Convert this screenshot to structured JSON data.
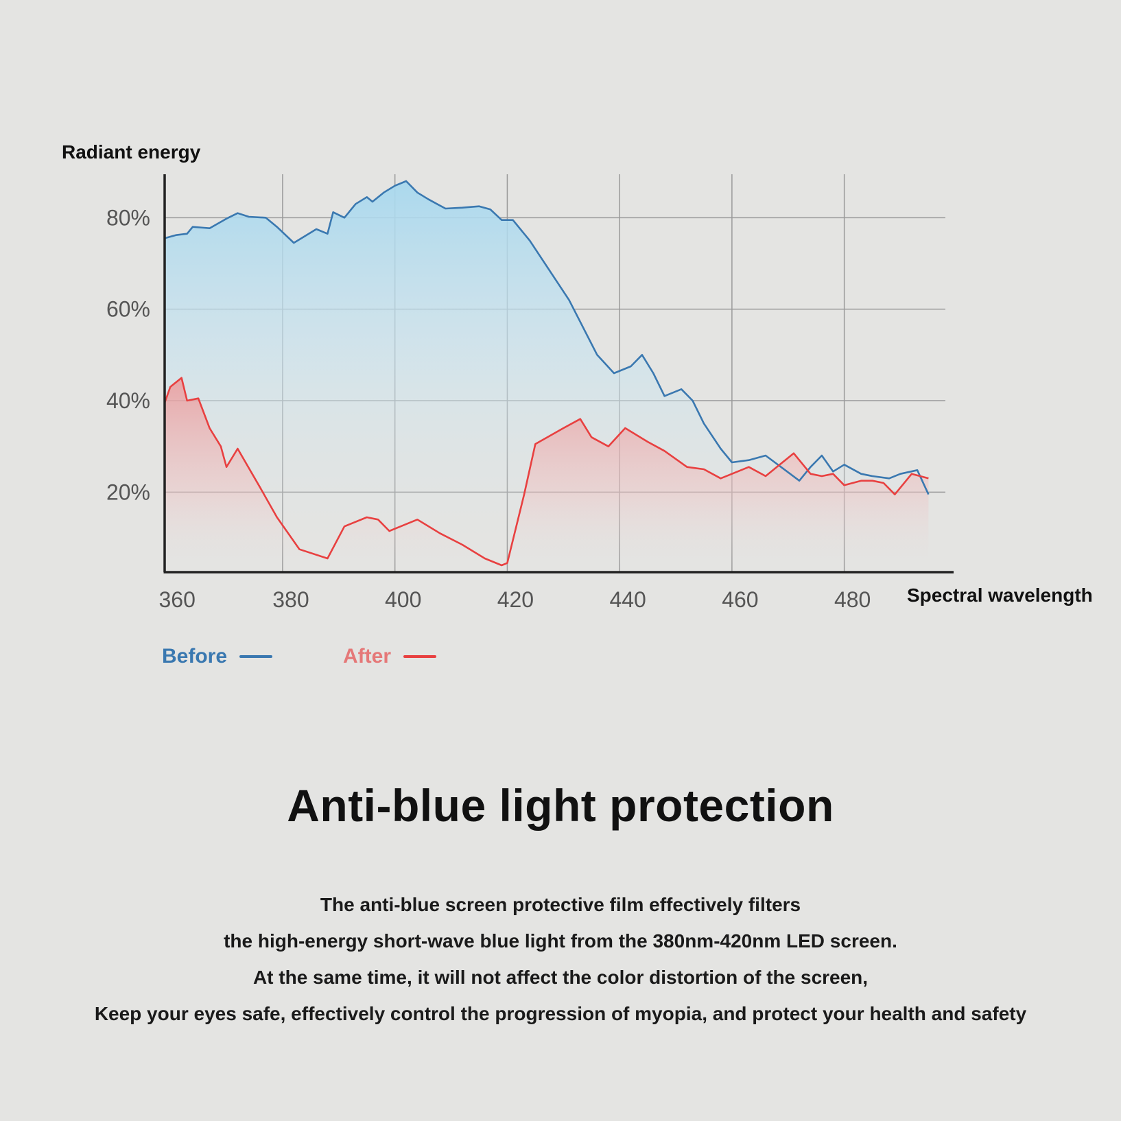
{
  "chart_data": {
    "type": "area",
    "xlabel": "Spectral wavelength",
    "ylabel": "Radiant energy",
    "x_ticks": [
      360,
      380,
      400,
      420,
      440,
      460,
      480
    ],
    "y_ticks": [
      {
        "value": 20,
        "label": "20%"
      },
      {
        "value": 40,
        "label": "40%"
      },
      {
        "value": 60,
        "label": "60%"
      },
      {
        "value": 80,
        "label": "80%"
      }
    ],
    "xlim": [
      359,
      498
    ],
    "ylim": [
      2.5,
      89.5
    ],
    "grid": true,
    "legend_position": "bottom-left",
    "series": [
      {
        "name": "Before",
        "color": "#3a78b0",
        "x": [
          359,
          361,
          363,
          364,
          366,
          367,
          370,
          372,
          374,
          377,
          379,
          382,
          384,
          386,
          388,
          389,
          391,
          393,
          395,
          396,
          398,
          400,
          402,
          404,
          406,
          409,
          412,
          415,
          417,
          419,
          421,
          424,
          431,
          436,
          439,
          442,
          444,
          446,
          448,
          451,
          453,
          455,
          458,
          460,
          463,
          466,
          472,
          474,
          476,
          478,
          480,
          483,
          485,
          488,
          490,
          493,
          495
        ],
        "y": [
          75.5,
          76.2,
          76.5,
          78,
          77.8,
          77.7,
          79.8,
          81,
          80.2,
          80,
          78,
          74.5,
          76,
          77.5,
          76.5,
          81.2,
          80,
          83,
          84.5,
          83.5,
          85.5,
          87,
          88,
          85.5,
          84,
          82,
          82.2,
          82.5,
          81.8,
          79.5,
          79.5,
          75,
          62,
          50,
          46,
          47.5,
          50,
          46,
          41,
          42.5,
          40,
          35,
          29.5,
          26.5,
          27,
          28,
          22.5,
          25.5,
          28,
          24.5,
          26,
          24,
          23.5,
          23,
          24,
          24.8,
          19.5
        ],
        "fill": "from #a8d8ee (top) to #ebebea (bottom)"
      },
      {
        "name": "After",
        "color": "#e84040",
        "x": [
          359,
          360,
          362,
          363,
          365,
          367,
          369,
          370,
          372,
          376,
          379,
          383,
          388,
          391,
          395,
          397,
          399,
          401,
          404,
          408,
          412,
          416,
          419,
          420,
          423,
          425,
          430,
          433,
          435,
          438,
          441,
          445,
          448,
          452,
          455,
          458,
          460,
          463,
          466,
          471,
          474,
          476,
          478,
          480,
          483,
          485,
          487,
          489,
          492,
          495
        ],
        "y": [
          39.5,
          43,
          45,
          40,
          40.5,
          34,
          30,
          25.5,
          29.5,
          21,
          14.5,
          7.5,
          5.5,
          12.5,
          14.5,
          14,
          11.5,
          12.5,
          14,
          11,
          8.5,
          5.5,
          4,
          4.5,
          19.5,
          30.5,
          34,
          36,
          32,
          30,
          34,
          31,
          29,
          25.5,
          25,
          23,
          24,
          25.5,
          23.5,
          28.5,
          24,
          23.5,
          24,
          21.5,
          22.5,
          22.5,
          22,
          19.5,
          24,
          23
        ]
      }
    ]
  },
  "title": "Anti-blue light protection",
  "description_lines": [
    "The anti-blue screen protective film effectively filters",
    "the high-energy short-wave blue light from the 380nm-420nm LED screen.",
    "At the same time, it will not affect the color distortion of the screen,",
    "Keep your eyes safe, effectively control the progression of myopia, and protect your health and safety"
  ]
}
